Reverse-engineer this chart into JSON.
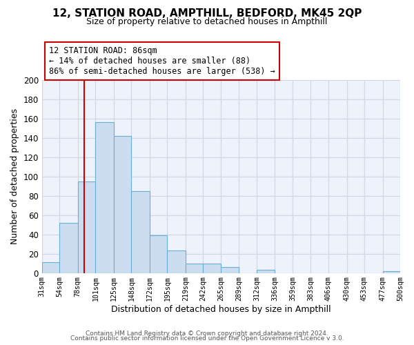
{
  "title": "12, STATION ROAD, AMPTHILL, BEDFORD, MK45 2QP",
  "subtitle": "Size of property relative to detached houses in Ampthill",
  "xlabel": "Distribution of detached houses by size in Ampthill",
  "ylabel": "Number of detached properties",
  "bin_labels": [
    "31sqm",
    "54sqm",
    "78sqm",
    "101sqm",
    "125sqm",
    "148sqm",
    "172sqm",
    "195sqm",
    "219sqm",
    "242sqm",
    "265sqm",
    "289sqm",
    "312sqm",
    "336sqm",
    "359sqm",
    "383sqm",
    "406sqm",
    "430sqm",
    "453sqm",
    "477sqm",
    "500sqm"
  ],
  "bar_values": [
    11,
    52,
    95,
    156,
    142,
    85,
    39,
    23,
    10,
    10,
    6,
    0,
    3,
    0,
    0,
    0,
    0,
    0,
    0,
    2
  ],
  "bar_color": "#ccddf0",
  "bar_edge_color": "#6aaed6",
  "ylim": [
    0,
    200
  ],
  "yticks": [
    0,
    20,
    40,
    60,
    80,
    100,
    120,
    140,
    160,
    180,
    200
  ],
  "property_line_x": 86,
  "property_line_color": "#cc0000",
  "ann_line1": "12 STATION ROAD: 86sqm",
  "ann_line2": "← 14% of detached houses are smaller (88)",
  "ann_line3": "86% of semi-detached houses are larger (538) →",
  "annotation_box_color": "#cc0000",
  "footer_line1": "Contains HM Land Registry data © Crown copyright and database right 2024.",
  "footer_line2": "Contains public sector information licensed under the Open Government Licence v 3.0.",
  "bin_edges_values": [
    31,
    54,
    78,
    101,
    125,
    148,
    172,
    195,
    219,
    242,
    265,
    289,
    312,
    336,
    359,
    383,
    406,
    430,
    453,
    477,
    500
  ],
  "background_color": "#eef2fa",
  "grid_color": "#d0d8e8"
}
